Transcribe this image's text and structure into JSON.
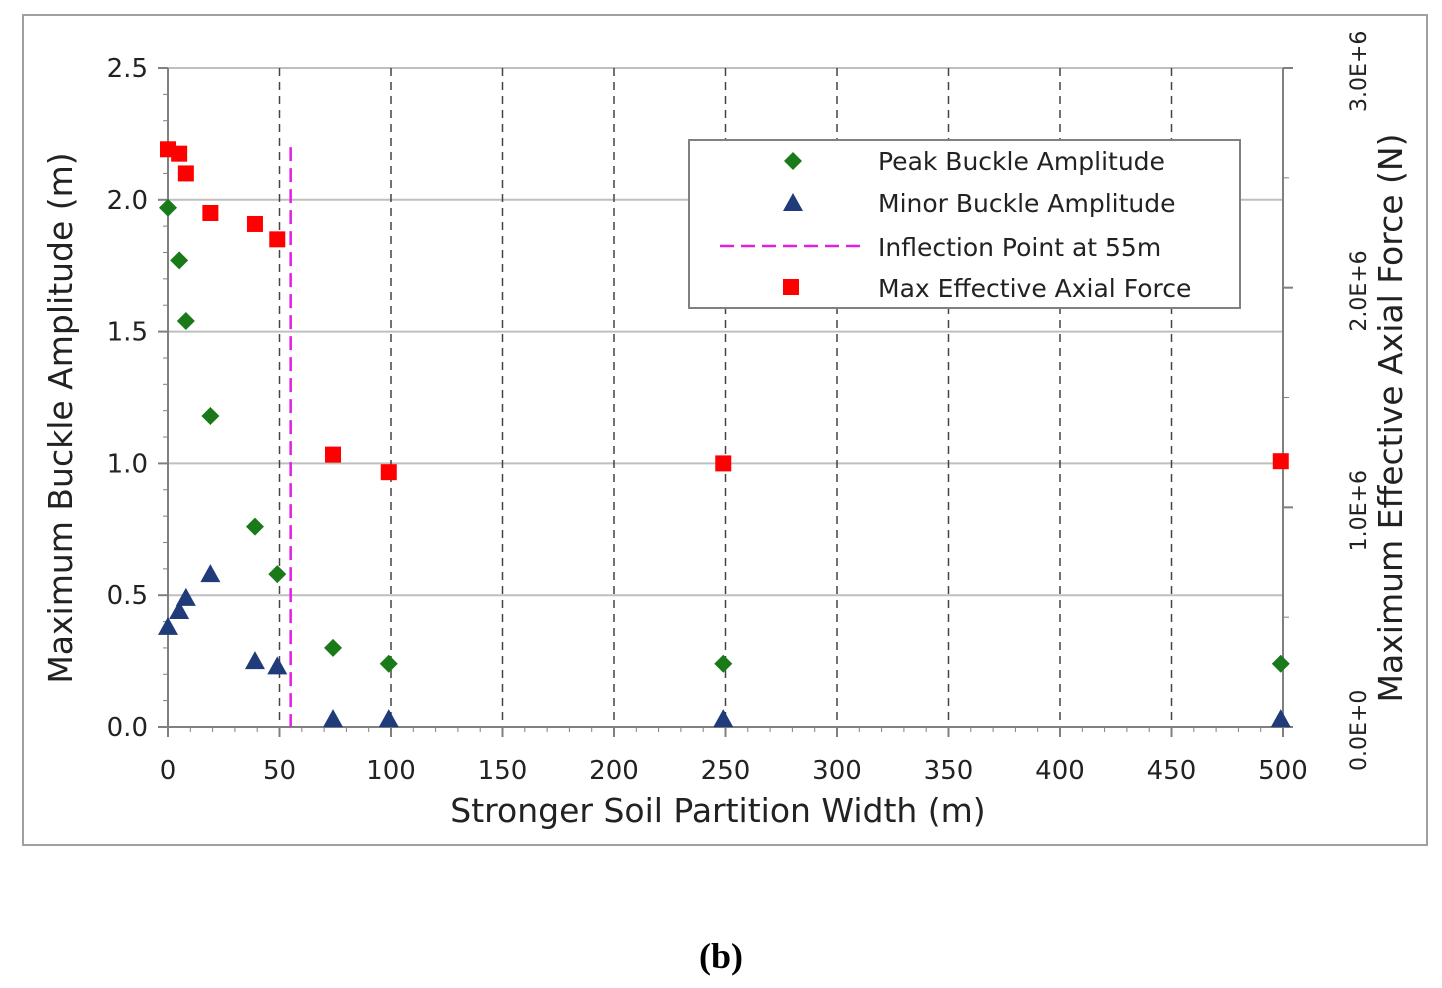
{
  "caption": "(b)",
  "colors": {
    "peak": "#1a7a1a",
    "minor": "#1f3b7a",
    "inflection": "#e020e0",
    "force": "#ff0000",
    "grid": "#bfbfbf",
    "dashgrid": "#444444"
  },
  "chart_data": {
    "type": "scatter",
    "xlabel": "Stronger Soil Partition Width (m)",
    "ylabel": "Maximum Buckle Amplitude (m)",
    "y2label": "Maximum Effective Axial Force (N)",
    "xlim": [
      0,
      500
    ],
    "ylim": [
      0,
      2.5
    ],
    "y2lim": [
      0,
      3000000
    ],
    "x_ticks": [
      "0",
      "50",
      "100",
      "150",
      "200",
      "250",
      "300",
      "350",
      "400",
      "450",
      "500"
    ],
    "y_ticks": [
      "0.0",
      "0.5",
      "1.0",
      "1.5",
      "2.0",
      "2.5"
    ],
    "y2_ticks": [
      "0.0E+0",
      "1.0E+6",
      "2.0E+6",
      "3.0E+6"
    ],
    "grid": true,
    "legend_position": "top-right",
    "series": [
      {
        "name": "Peak Buckle Amplitude",
        "axis": "left",
        "marker": "diamond",
        "x": [
          0,
          5,
          8,
          19,
          39,
          49,
          74,
          99,
          249,
          499
        ],
        "y": [
          1.97,
          1.77,
          1.54,
          1.18,
          0.76,
          0.58,
          0.3,
          0.24,
          0.24,
          0.24
        ]
      },
      {
        "name": "Minor Buckle Amplitude",
        "axis": "left",
        "marker": "triangle",
        "x": [
          0,
          5,
          8,
          19,
          39,
          49,
          74,
          99,
          249,
          499
        ],
        "y": [
          0.38,
          0.44,
          0.49,
          0.58,
          0.25,
          0.23,
          0.03,
          0.03,
          0.03,
          0.03
        ]
      },
      {
        "name": "Max Effective Axial Force",
        "axis": "right",
        "marker": "square",
        "x": [
          0,
          5,
          8,
          19,
          39,
          49,
          74,
          99,
          249,
          499
        ],
        "y": [
          2630000,
          2610000,
          2520000,
          2340000,
          2290000,
          2220000,
          1240000,
          1160000,
          1200000,
          1210000
        ]
      }
    ],
    "reference_lines": [
      {
        "name": "Inflection Point at 55m",
        "x": 55,
        "y_from": 0,
        "y_to": 2.2
      }
    ]
  }
}
